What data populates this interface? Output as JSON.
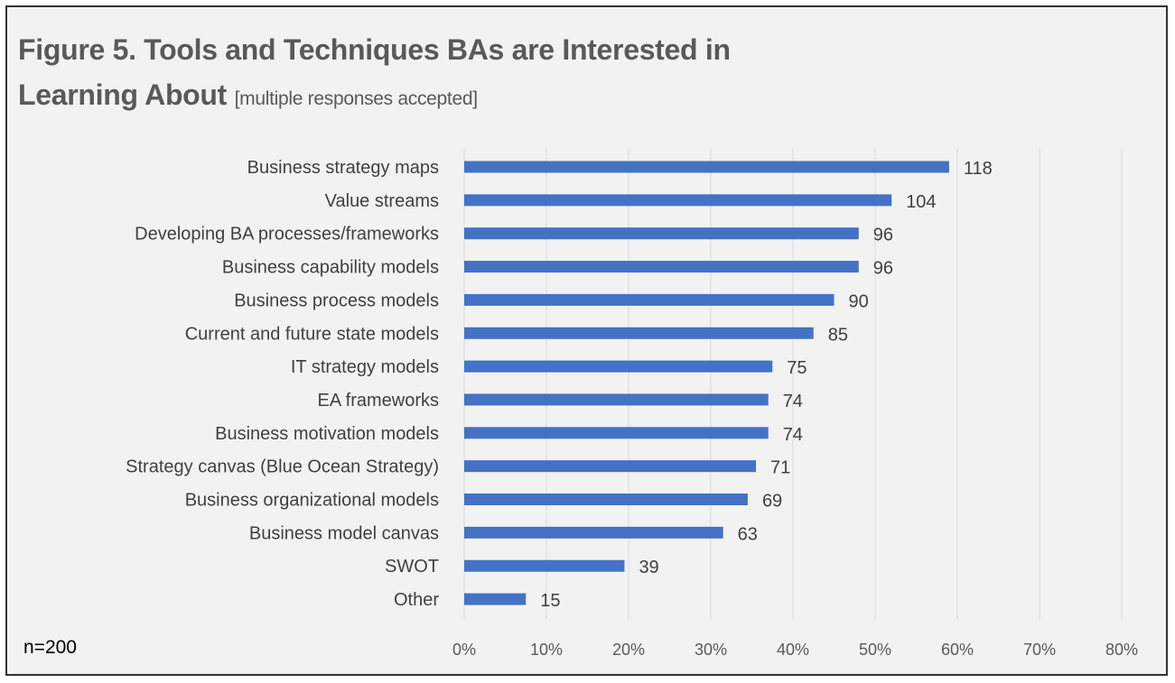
{
  "chart_data": {
    "type": "bar",
    "orientation": "horizontal",
    "title": "Figure 5. Tools and Techniques BAs are Interested in Learning  About",
    "title_line1": "Figure 5. Tools and Techniques BAs are Interested in",
    "title_line2": "Learning  About",
    "subtitle": "[multiple responses accepted]",
    "note": "n=200",
    "xlabel": "",
    "ylabel": "",
    "xlim": [
      0,
      0.8
    ],
    "x_ticks": [
      "0%",
      "10%",
      "20%",
      "30%",
      "40%",
      "50%",
      "60%",
      "70%",
      "80%"
    ],
    "categories": [
      "Business strategy maps",
      "Value streams",
      "Developing BA processes/frameworks",
      "Business capability models",
      "Business process models",
      "Current and future state models",
      "IT strategy models",
      "EA frameworks",
      "Business motivation models",
      "Strategy canvas (Blue Ocean Strategy)",
      "Business organizational models",
      "Business model canvas",
      "SWOT",
      "Other"
    ],
    "counts": [
      118,
      104,
      96,
      96,
      90,
      85,
      75,
      74,
      74,
      71,
      69,
      63,
      39,
      15
    ],
    "data_labels": [
      "118",
      "104",
      "96",
      "96",
      "90",
      "85",
      "75",
      "74",
      "74",
      "71",
      "69",
      "63",
      "39",
      "15"
    ],
    "n": 200,
    "bar_color": "#4472c4",
    "grid": true
  }
}
